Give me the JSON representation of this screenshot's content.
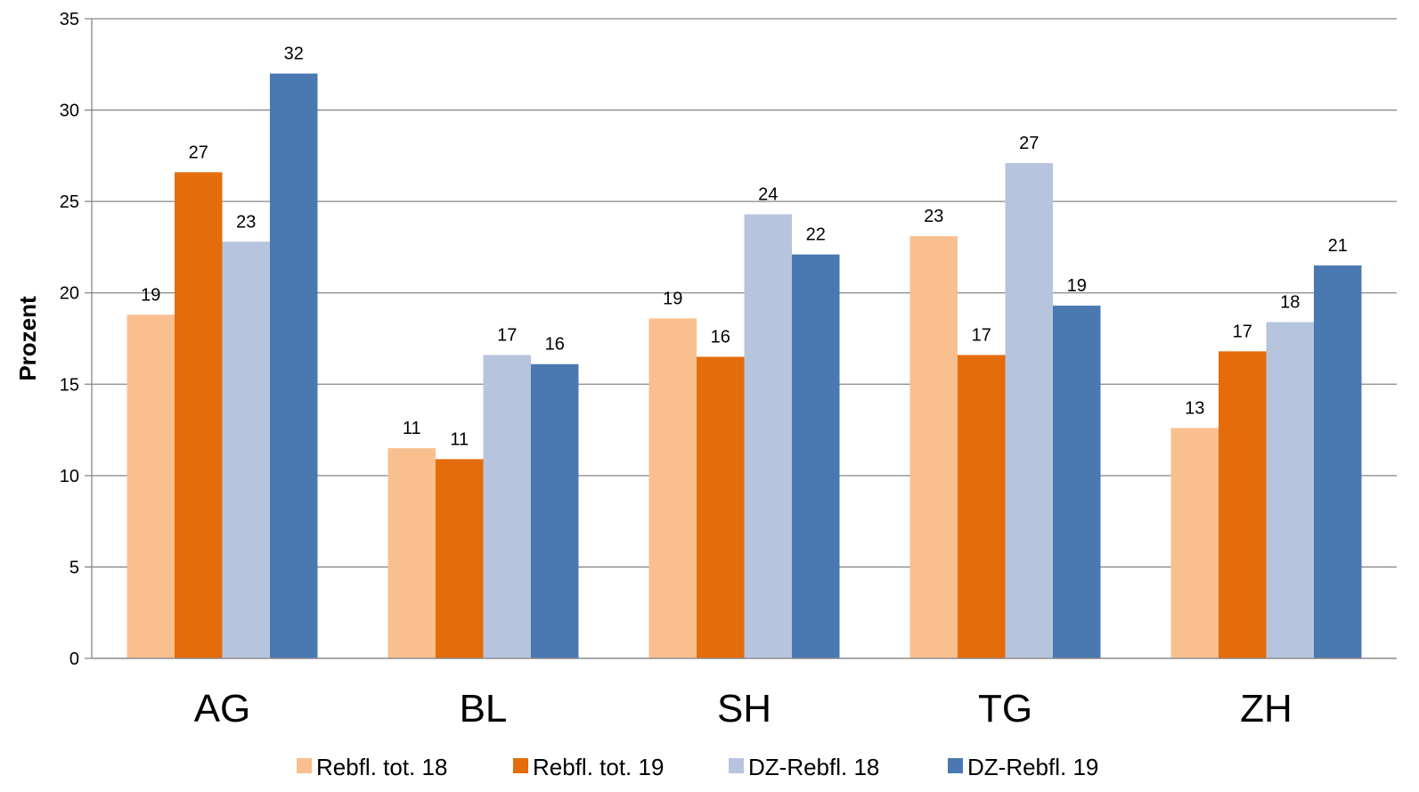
{
  "chart_data": {
    "type": "bar",
    "title": "",
    "xlabel": "",
    "ylabel": "Prozent",
    "ylim": [
      0,
      35
    ],
    "yticks": [
      0,
      5,
      10,
      15,
      20,
      25,
      30,
      35
    ],
    "grid": true,
    "legend_position": "bottom",
    "categories": [
      "AG",
      "BL",
      "SH",
      "TG",
      "ZH"
    ],
    "series": [
      {
        "name": "Rebfl. tot. 18",
        "color": "#F9BF8F",
        "values": [
          18.8,
          11.5,
          18.6,
          23.1,
          12.6
        ],
        "labels": [
          "19",
          "11",
          "19",
          "23",
          "13"
        ]
      },
      {
        "name": "Rebfl. tot. 19",
        "color": "#E46C0A",
        "values": [
          26.6,
          10.9,
          16.5,
          16.6,
          16.8
        ],
        "labels": [
          "27",
          "11",
          "16",
          "17",
          "17"
        ]
      },
      {
        "name": "DZ-Rebfl. 18",
        "color": "#B7C4DE",
        "values": [
          22.8,
          16.6,
          24.3,
          27.1,
          18.4
        ],
        "labels": [
          "23",
          "17",
          "24",
          "27",
          "18"
        ]
      },
      {
        "name": "DZ-Rebfl. 19",
        "color": "#4A78B0",
        "values": [
          32.0,
          16.1,
          22.1,
          19.3,
          21.5
        ],
        "labels": [
          "32",
          "16",
          "22",
          "19",
          "21"
        ]
      }
    ]
  }
}
